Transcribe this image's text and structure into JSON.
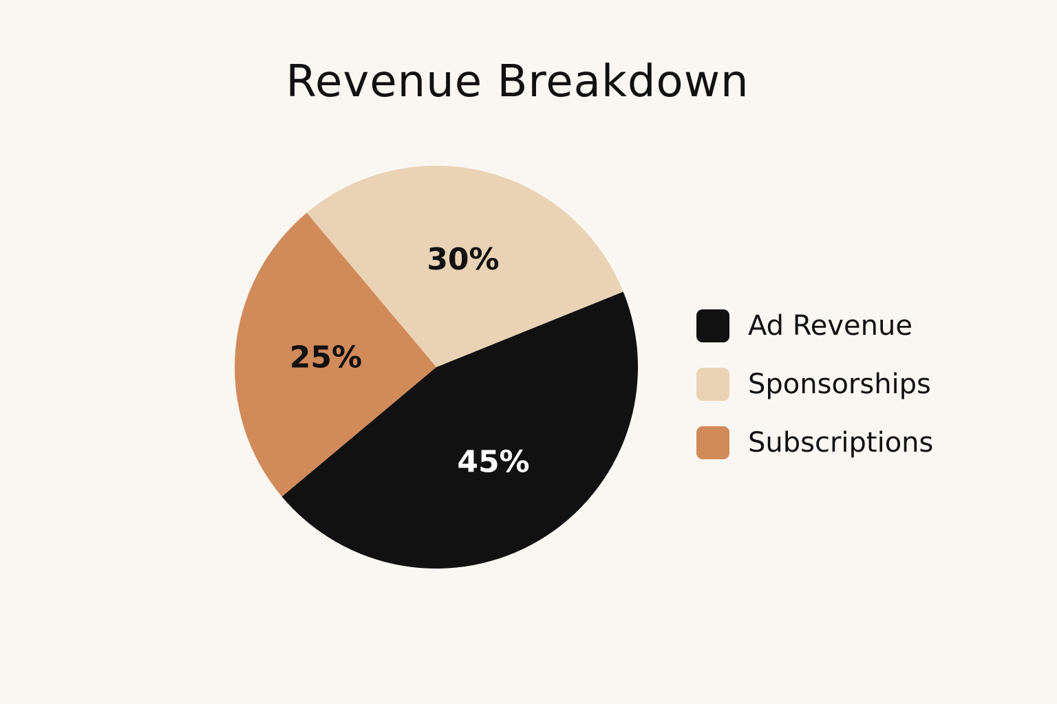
{
  "chart_data": {
    "type": "pie",
    "title": "Revenue Breakdown",
    "slices": [
      {
        "label": "Ad Revenue",
        "value": 45,
        "display": "45%",
        "color": "#111111",
        "text_color": "#ffffff"
      },
      {
        "label": "Sponsorships",
        "value": 30,
        "display": "30%",
        "color": "#ead3b5",
        "text_color": "#111111"
      },
      {
        "label": "Subscriptions",
        "value": 25,
        "display": "25%",
        "color": "#d18a5a",
        "text_color": "#111111"
      }
    ],
    "legend_position": "right"
  }
}
